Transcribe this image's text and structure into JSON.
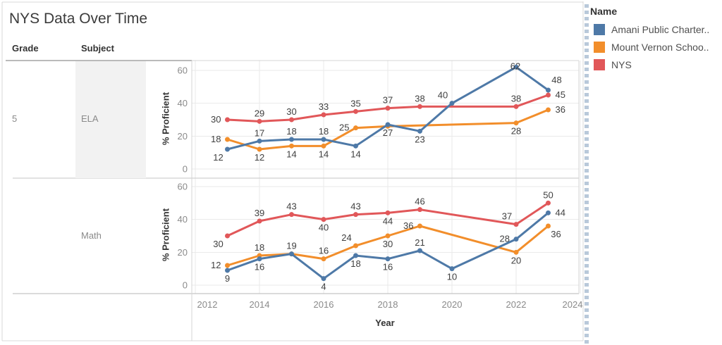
{
  "title": "NYS Data Over Time",
  "columns": {
    "grade": "Grade",
    "subject": "Subject"
  },
  "rows": {
    "grade": "5"
  },
  "axes": {
    "x_title": "Year",
    "y_title": "% Proficient"
  },
  "legend": {
    "title": "Name",
    "items": [
      {
        "label": "Amani Public Charter..",
        "color": "#4e79a7"
      },
      {
        "label": "Mount Vernon Schoo..",
        "color": "#f28e2b"
      },
      {
        "label": "NYS",
        "color": "#e15759"
      }
    ]
  },
  "colors": {
    "amani": "#4e79a7",
    "mount_vernon": "#f28e2b",
    "nys": "#e15759"
  },
  "chart_data": [
    {
      "type": "line",
      "subject": "ELA",
      "grade": "5",
      "ylabel": "% Proficient",
      "xlabel": "Year",
      "x_ticks": [
        2012,
        2014,
        2016,
        2018,
        2020,
        2022,
        2024
      ],
      "y_ticks": [
        0,
        20,
        40,
        60
      ],
      "xlim": [
        2012,
        2024
      ],
      "ylim": [
        0,
        65
      ],
      "series": [
        {
          "name": "Amani Public Charter..",
          "color": "#4e79a7",
          "points": [
            {
              "x": 2013,
              "y": 12,
              "label": "12",
              "label_pos": "below-left"
            },
            {
              "x": 2014,
              "y": 17,
              "label": "17",
              "label_pos": "above"
            },
            {
              "x": 2015,
              "y": 18,
              "label": "18",
              "label_pos": "above"
            },
            {
              "x": 2016,
              "y": 18,
              "label": "18",
              "label_pos": "above"
            },
            {
              "x": 2017,
              "y": 14,
              "label": "14",
              "label_pos": "below"
            },
            {
              "x": 2018,
              "y": 27,
              "label": "27",
              "label_pos": "below"
            },
            {
              "x": 2019,
              "y": 23,
              "label": "23",
              "label_pos": "below"
            },
            {
              "x": 2020,
              "y": 40,
              "label": "40",
              "label_pos": "above-left"
            },
            {
              "x": 2022,
              "y": 62,
              "label": "62",
              "label_pos": "center"
            },
            {
              "x": 2023,
              "y": 48,
              "label": "48",
              "label_pos": "above-right"
            }
          ]
        },
        {
          "name": "Mount Vernon Schoo..",
          "color": "#f28e2b",
          "points": [
            {
              "x": 2013,
              "y": 18,
              "label": "18",
              "label_pos": "left"
            },
            {
              "x": 2014,
              "y": 12,
              "label": "12",
              "label_pos": "below"
            },
            {
              "x": 2015,
              "y": 14,
              "label": "14",
              "label_pos": "below"
            },
            {
              "x": 2016,
              "y": 14,
              "label": "14",
              "label_pos": "below"
            },
            {
              "x": 2017,
              "y": 25,
              "label": "25",
              "label_pos": "left"
            },
            {
              "x": 2018,
              "y": 26,
              "label": null,
              "label_pos": null
            },
            {
              "x": 2022,
              "y": 28,
              "label": "28",
              "label_pos": "below"
            },
            {
              "x": 2023,
              "y": 36,
              "label": "36",
              "label_pos": "right"
            }
          ]
        },
        {
          "name": "NYS",
          "color": "#e15759",
          "points": [
            {
              "x": 2013,
              "y": 30,
              "label": "30",
              "label_pos": "left"
            },
            {
              "x": 2014,
              "y": 29,
              "label": "29",
              "label_pos": "above"
            },
            {
              "x": 2015,
              "y": 30,
              "label": "30",
              "label_pos": "above"
            },
            {
              "x": 2016,
              "y": 33,
              "label": "33",
              "label_pos": "above"
            },
            {
              "x": 2017,
              "y": 35,
              "label": "35",
              "label_pos": "above"
            },
            {
              "x": 2018,
              "y": 37,
              "label": "37",
              "label_pos": "above"
            },
            {
              "x": 2019,
              "y": 38,
              "label": "38",
              "label_pos": "above"
            },
            {
              "x": 2022,
              "y": 38,
              "label": "38",
              "label_pos": "above"
            },
            {
              "x": 2023,
              "y": 45,
              "label": "45",
              "label_pos": "right"
            }
          ]
        }
      ]
    },
    {
      "type": "line",
      "subject": "Math",
      "grade": "5",
      "ylabel": "% Proficient",
      "xlabel": "Year",
      "x_ticks": [
        2012,
        2014,
        2016,
        2018,
        2020,
        2022,
        2024
      ],
      "y_ticks": [
        0,
        20,
        40,
        60
      ],
      "xlim": [
        2012,
        2024
      ],
      "ylim": [
        0,
        65
      ],
      "series": [
        {
          "name": "Amani Public Charter..",
          "color": "#4e79a7",
          "points": [
            {
              "x": 2013,
              "y": 9,
              "label": "9",
              "label_pos": "below"
            },
            {
              "x": 2014,
              "y": 16,
              "label": "16",
              "label_pos": "below"
            },
            {
              "x": 2015,
              "y": 19,
              "label": null,
              "label_pos": null
            },
            {
              "x": 2016,
              "y": 4,
              "label": "4",
              "label_pos": "below"
            },
            {
              "x": 2017,
              "y": 18,
              "label": "18",
              "label_pos": "below"
            },
            {
              "x": 2018,
              "y": 16,
              "label": "16",
              "label_pos": "below"
            },
            {
              "x": 2019,
              "y": 21,
              "label": "21",
              "label_pos": "above"
            },
            {
              "x": 2020,
              "y": 10,
              "label": "10",
              "label_pos": "below"
            },
            {
              "x": 2022,
              "y": 28,
              "label": "28",
              "label_pos": "left"
            },
            {
              "x": 2023,
              "y": 44,
              "label": "44",
              "label_pos": "right"
            }
          ]
        },
        {
          "name": "Mount Vernon Schoo..",
          "color": "#f28e2b",
          "points": [
            {
              "x": 2013,
              "y": 12,
              "label": "12",
              "label_pos": "left"
            },
            {
              "x": 2014,
              "y": 18,
              "label": "18",
              "label_pos": "above"
            },
            {
              "x": 2015,
              "y": 19,
              "label": "19",
              "label_pos": "above"
            },
            {
              "x": 2016,
              "y": 16,
              "label": "16",
              "label_pos": "above"
            },
            {
              "x": 2017,
              "y": 24,
              "label": "24",
              "label_pos": "above-left"
            },
            {
              "x": 2018,
              "y": 30,
              "label": "30",
              "label_pos": "below"
            },
            {
              "x": 2019,
              "y": 36,
              "label": "36",
              "label_pos": "left"
            },
            {
              "x": 2022,
              "y": 20,
              "label": "20",
              "label_pos": "below"
            },
            {
              "x": 2023,
              "y": 36,
              "label": "36",
              "label_pos": "below-right"
            }
          ]
        },
        {
          "name": "NYS",
          "color": "#e15759",
          "points": [
            {
              "x": 2013,
              "y": 30,
              "label": "30",
              "label_pos": "below-left"
            },
            {
              "x": 2014,
              "y": 39,
              "label": "39",
              "label_pos": "above"
            },
            {
              "x": 2015,
              "y": 43,
              "label": "43",
              "label_pos": "above"
            },
            {
              "x": 2016,
              "y": 40,
              "label": "40",
              "label_pos": "below"
            },
            {
              "x": 2017,
              "y": 43,
              "label": "43",
              "label_pos": "above"
            },
            {
              "x": 2018,
              "y": 44,
              "label": "44",
              "label_pos": "below"
            },
            {
              "x": 2019,
              "y": 46,
              "label": "46",
              "label_pos": "above"
            },
            {
              "x": 2022,
              "y": 37,
              "label": "37",
              "label_pos": "above-left"
            },
            {
              "x": 2023,
              "y": 50,
              "label": "50",
              "label_pos": "above"
            }
          ]
        }
      ]
    }
  ]
}
